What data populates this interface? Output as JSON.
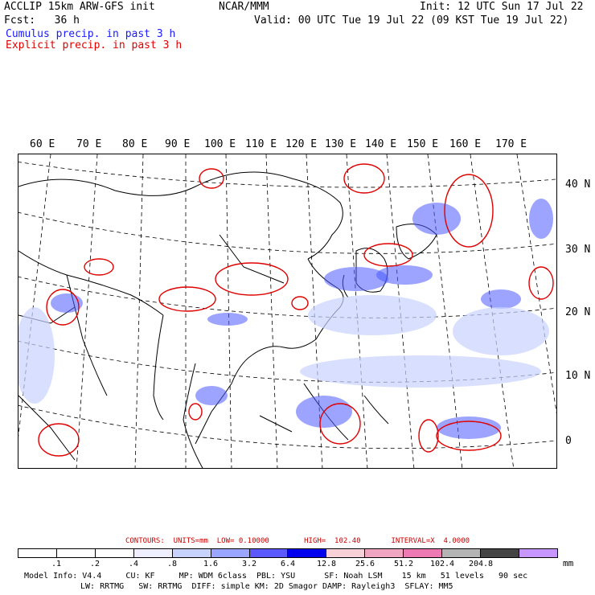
{
  "header": {
    "model": "ACCLIP 15km ARW-GFS init",
    "center": "NCAR/MMM",
    "init": "Init: 12 UTC Sun 17 Jul 22",
    "fcst": "Fcst:   36 h",
    "valid": "Valid: 00 UTC Tue 19 Jul 22 (09 KST Tue 19 Jul 22)",
    "cumulus": "Cumulus precip. in past 3 h",
    "explicit": "Explicit precip. in past 3 h",
    "cumulus_color": "#1a1aff",
    "explicit_color": "#e00000"
  },
  "lon_labels": [
    "60 E",
    "70 E",
    "80 E",
    "90 E",
    "100 E",
    "110 E",
    "120 E",
    "130 E",
    "140 E",
    "150 E",
    "160 E",
    "170 E"
  ],
  "lat_labels": [
    "40 N",
    "30 N",
    "20 N",
    "10 N",
    "0"
  ],
  "contours": "CONTOURS:  UNITS=mm  LOW= 0.10000        HIGH=  102.40       INTERVAL=X  4.0000",
  "colorbar": {
    "ticks": [
      ".1",
      ".2",
      ".4",
      ".8",
      "1.6",
      "3.2",
      "6.4",
      "12.8",
      "25.6",
      "51.2",
      "102.4",
      "204.8"
    ],
    "colors": [
      "#ffffff",
      "#ffffff",
      "#ffffff",
      "#eeeeff",
      "#c8d2ff",
      "#9aa6ff",
      "#5a5aff",
      "#0000ee",
      "#f7d0d8",
      "#f0a6c0",
      "#ee7ab4",
      "#b4b4b4",
      "#444444",
      "#c896ff"
    ],
    "units": "mm"
  },
  "footer": {
    "line1": "Model Info: V4.4     CU: KF     MP: WDM 6class  PBL: YSU      SF: Noah LSM    15 km   51 levels   90 sec",
    "line2": "LW: RRTMG   SW: RRTMG  DIFF: simple KM: 2D Smagor DAMP: Rayleigh3  SFLAY: MM5"
  }
}
